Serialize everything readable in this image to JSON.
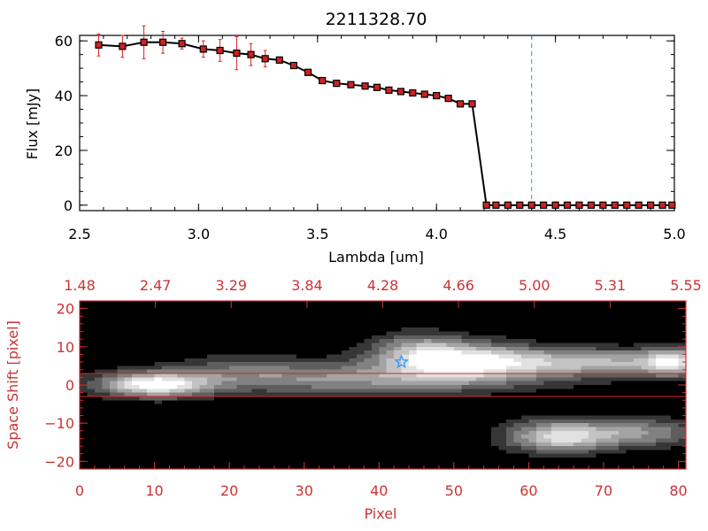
{
  "colors": {
    "background": "#ffffff",
    "axis": "#000000",
    "marker": "#cc2222",
    "errorbar": "#dd2222",
    "line": "#000000",
    "cutoff": "#3388ff",
    "accent": "#cc3333",
    "star": "#3399ff",
    "cuts": "#dd2222"
  },
  "chart_data": [
    {
      "type": "line",
      "title": "2211328.70",
      "xlabel": "Lambda [um]",
      "ylabel": "Flux [mJy]",
      "xlim": [
        2.5,
        5.0
      ],
      "ylim": [
        -2,
        62
      ],
      "xticks": [
        2.5,
        3.0,
        3.5,
        4.0,
        4.5,
        5.0
      ],
      "xtick_labels": [
        "2.5",
        "3.0",
        "3.5",
        "4.0",
        "4.5",
        "5.0"
      ],
      "yticks": [
        0,
        20,
        40,
        60
      ],
      "ytick_labels": [
        "0",
        "20",
        "40",
        "60"
      ],
      "grid": false,
      "vline": 4.4,
      "series": [
        {
          "x": [
            2.58,
            2.68,
            2.77,
            2.85,
            2.93,
            3.02,
            3.09,
            3.16,
            3.22,
            3.28,
            3.34,
            3.4,
            3.46,
            3.52,
            3.58,
            3.64,
            3.7,
            3.75,
            3.8,
            3.85,
            3.9,
            3.95,
            4.0,
            4.05,
            4.1,
            4.15,
            4.21,
            4.25,
            4.3,
            4.35,
            4.4,
            4.45,
            4.5,
            4.55,
            4.6,
            4.65,
            4.7,
            4.75,
            4.8,
            4.85,
            4.9,
            4.95,
            4.99
          ],
          "y": [
            58.5,
            58,
            59.5,
            59.5,
            59,
            57,
            56.5,
            55.5,
            55,
            53.5,
            53,
            51,
            48.5,
            45.5,
            44.5,
            44,
            43.5,
            43,
            42,
            41.5,
            41,
            40.5,
            40,
            39,
            37,
            37,
            0,
            0,
            0,
            0,
            0,
            0,
            0,
            0,
            0,
            0,
            0,
            0,
            0,
            0,
            0,
            0,
            0
          ],
          "err": [
            4,
            4,
            6,
            4,
            2,
            3,
            4,
            6,
            4,
            3,
            1,
            0,
            0,
            0,
            0,
            0,
            0,
            0,
            0,
            0,
            0,
            0,
            0,
            0,
            0,
            0,
            0,
            0,
            0,
            0,
            0,
            0,
            0,
            0,
            0,
            0,
            0,
            0,
            0,
            0,
            0,
            0,
            0
          ]
        }
      ]
    },
    {
      "type": "heatmap",
      "xlabel": "Pixel",
      "ylabel": "Space Shift [pixel]",
      "xlim": [
        0,
        81
      ],
      "ylim": [
        -22,
        22
      ],
      "xticks": [
        0,
        10,
        20,
        30,
        40,
        50,
        60,
        70,
        80
      ],
      "xtick_labels": [
        "0",
        "10",
        "20",
        "30",
        "40",
        "50",
        "60",
        "70",
        "80"
      ],
      "yticks": [
        -20,
        -10,
        0,
        10,
        20
      ],
      "ytick_labels": [
        "−20",
        "−10",
        "0",
        "10",
        "20"
      ],
      "top_axis_values": [
        1.48,
        2.47,
        3.29,
        3.84,
        4.28,
        4.66,
        5.0,
        5.31,
        5.55
      ],
      "top_axis_labels": [
        "1.48",
        "2.47",
        "3.29",
        "3.84",
        "4.28",
        "4.66",
        "5.00",
        "5.31",
        "5.55"
      ],
      "hlines": [
        3,
        -3
      ],
      "star": {
        "x": 43,
        "y": 6
      },
      "sources": [
        {
          "cx": 10,
          "cy": 0,
          "sx": 5,
          "sy": 2.2,
          "amp": 1.0
        },
        {
          "cx": 36,
          "cy": 1.5,
          "sx": 18,
          "sy": 2.8,
          "amp": 0.55
        },
        {
          "cx": 50,
          "cy": 6.5,
          "sx": 7,
          "sy": 3.5,
          "amp": 0.85
        },
        {
          "cx": 68,
          "cy": 6,
          "sx": 13,
          "sy": 2.5,
          "amp": 0.72
        },
        {
          "cx": 79,
          "cy": 6,
          "sx": 2.5,
          "sy": 2.5,
          "amp": 0.6
        },
        {
          "cx": 64,
          "cy": -13.5,
          "sx": 5,
          "sy": 3,
          "amp": 0.85
        },
        {
          "cx": 75,
          "cy": -12.5,
          "sx": 6,
          "sy": 2.6,
          "amp": 0.55
        },
        {
          "cx": 45,
          "cy": 10,
          "sx": 4,
          "sy": 3,
          "amp": 0.35
        },
        {
          "cx": 22,
          "cy": 5,
          "sx": 6,
          "sy": 3,
          "amp": 0.22
        }
      ]
    }
  ]
}
